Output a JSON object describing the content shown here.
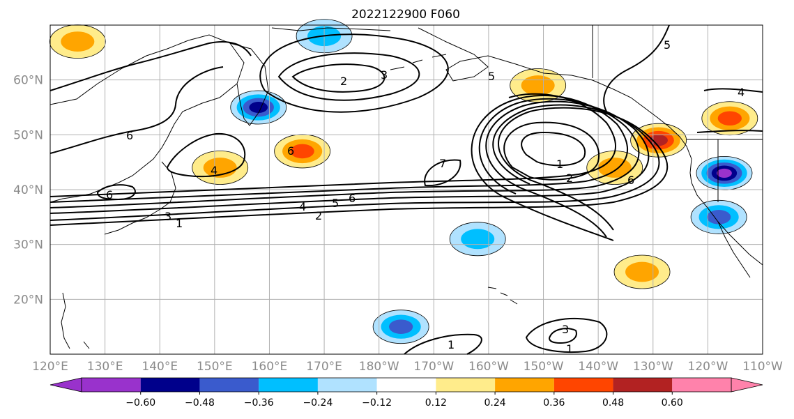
{
  "title": "2022122900 F060",
  "map": {
    "lon_range": [
      120,
      250
    ],
    "lat_range": [
      10,
      70
    ],
    "lon_ticks": [
      {
        "lon": 120,
        "label": "120°E"
      },
      {
        "lon": 130,
        "label": "130°E"
      },
      {
        "lon": 140,
        "label": "140°E"
      },
      {
        "lon": 150,
        "label": "150°E"
      },
      {
        "lon": 160,
        "label": "160°E"
      },
      {
        "lon": 170,
        "label": "170°E"
      },
      {
        "lon": 180,
        "label": "180°W"
      },
      {
        "lon": 190,
        "label": "170°W"
      },
      {
        "lon": 200,
        "label": "160°W"
      },
      {
        "lon": 210,
        "label": "150°W"
      },
      {
        "lon": 220,
        "label": "140°W"
      },
      {
        "lon": 230,
        "label": "130°W"
      },
      {
        "lon": 240,
        "label": "120°W"
      },
      {
        "lon": 250,
        "label": "110°W"
      }
    ],
    "lat_ticks": [
      {
        "lat": 20,
        "label": "20°N"
      },
      {
        "lat": 30,
        "label": "30°N"
      },
      {
        "lat": 40,
        "label": "40°N"
      },
      {
        "lat": 50,
        "label": "50°N"
      },
      {
        "lat": 60,
        "label": "60°N"
      }
    ],
    "grid": true,
    "projection": "PlateCarree"
  },
  "colorbar": {
    "extend": "both",
    "levels": [
      -0.72,
      -0.6,
      -0.48,
      -0.36,
      -0.24,
      -0.12,
      0.12,
      0.24,
      0.36,
      0.48,
      0.6,
      0.72
    ],
    "colors": [
      "#9932CC",
      "#00008B",
      "#3A5BCD",
      "#00BFFF",
      "#B0E2FF",
      "#FFFFFF",
      "#FFEC8B",
      "#FFA500",
      "#FF4500",
      "#B22222",
      "#FF82AB"
    ],
    "tick_labels": [
      "−0.60",
      "−0.48",
      "−0.36",
      "−0.24",
      "−0.12",
      "0.12",
      "0.24",
      "0.36",
      "0.48",
      "0.60"
    ]
  },
  "chart_data": {
    "type": "heatmap",
    "title": "2022122900 F060",
    "xlabel": "",
    "ylabel": "",
    "xlim": [
      120,
      250
    ],
    "ylim": [
      10,
      70
    ],
    "filled_anomalies": [
      {
        "lon": 125,
        "lat": 67,
        "value": 0.33
      },
      {
        "lon": 158,
        "lat": 55,
        "value": -0.5
      },
      {
        "lon": 166,
        "lat": 47,
        "value": 0.42
      },
      {
        "lon": 151,
        "lat": 44,
        "value": 0.3
      },
      {
        "lon": 209,
        "lat": 59,
        "value": 0.32
      },
      {
        "lon": 223,
        "lat": 44,
        "value": 0.3
      },
      {
        "lon": 231,
        "lat": 49,
        "value": 0.55
      },
      {
        "lon": 244,
        "lat": 53,
        "value": 0.42
      },
      {
        "lon": 243,
        "lat": 43,
        "value": -0.66
      },
      {
        "lon": 242,
        "lat": 35,
        "value": -0.42
      },
      {
        "lon": 170,
        "lat": 68,
        "value": -0.3
      },
      {
        "lon": 184,
        "lat": 15,
        "value": -0.4
      },
      {
        "lon": 198,
        "lat": 31,
        "value": -0.3
      },
      {
        "lon": 228,
        "lat": 25,
        "value": 0.32
      }
    ],
    "contours": [
      {
        "label": "1",
        "lat": 34.5,
        "lon_extent": [
          120,
          240
        ]
      },
      {
        "label": "2",
        "lat": 35.2,
        "lon_extent": [
          120,
          240
        ]
      },
      {
        "label": "4",
        "lat": 36.5,
        "lon_extent": [
          120,
          240
        ]
      },
      {
        "label": "5",
        "lat": 37.0,
        "lon_extent": [
          120,
          240
        ]
      },
      {
        "label": "6",
        "lat": 38.5,
        "lon_extent": [
          120,
          240
        ]
      },
      {
        "label": "2",
        "lat": 61.0,
        "lon_extent": [
          164,
          183
        ]
      },
      {
        "label": "3",
        "lat": 62.5,
        "lon_extent": [
          160,
          190
        ]
      },
      {
        "label": "1",
        "lat": 47.0,
        "lon_extent": [
          209,
          217
        ]
      },
      {
        "label": "2",
        "lat": 45.0,
        "lon_extent": [
          207,
          221
        ]
      },
      {
        "label": "6",
        "lat": 51.0,
        "lon_extent": [
          122,
          178
        ]
      },
      {
        "label": "4",
        "lat": 45.0,
        "lon_extent": [
          141,
          165
        ]
      },
      {
        "label": "3",
        "lat": 13.0,
        "lon_extent": [
          209,
          215
        ]
      }
    ]
  }
}
